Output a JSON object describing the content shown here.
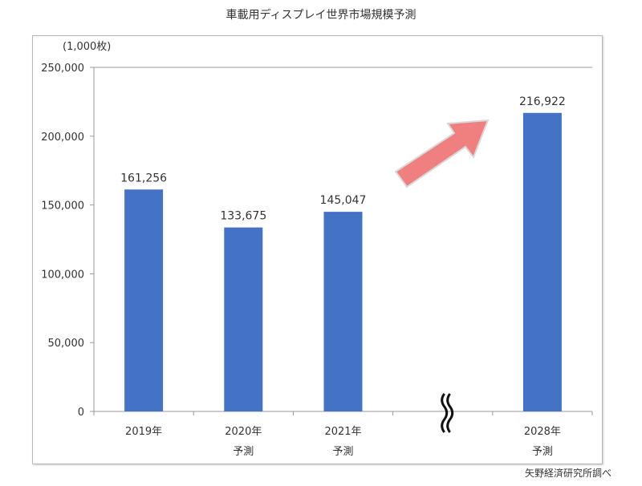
{
  "chart_data": {
    "type": "bar",
    "title": "車載用ディスプレイ世界市場規模予測",
    "unit_label": "(1,000枚)",
    "source": "矢野経済研究所調べ",
    "categories": [
      {
        "year": "2019年",
        "note": ""
      },
      {
        "year": "2020年",
        "note": "予測"
      },
      {
        "year": "2021年",
        "note": "予測"
      },
      {
        "year": "",
        "note": ""
      },
      {
        "year": "2028年",
        "note": "予測"
      }
    ],
    "values": [
      161256,
      133675,
      145047,
      null,
      216922
    ],
    "value_labels": [
      "161,256",
      "133,675",
      "145,047",
      "",
      "216,922"
    ],
    "ylim": [
      0,
      250000
    ],
    "yticks": [
      0,
      50000,
      100000,
      150000,
      200000,
      250000
    ],
    "ytick_labels": [
      "0",
      "50,000",
      "100,000",
      "150,000",
      "200,000",
      "250,000"
    ],
    "grid": false,
    "axis_break_between": [
      "2021年",
      "2028年"
    ],
    "annotation": "upward-arrow",
    "colors": {
      "bar": "#4472c4",
      "arrow": "#f08080",
      "arrow_edge": "#d9d9d9"
    }
  }
}
